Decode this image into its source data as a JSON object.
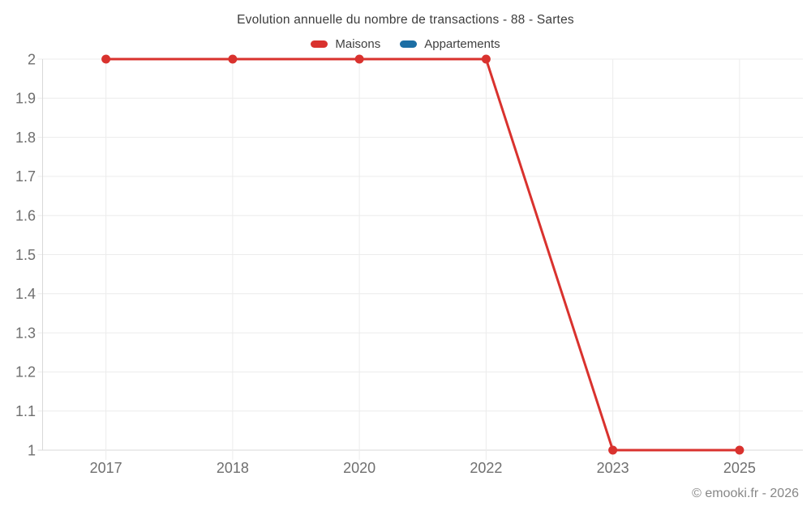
{
  "chart": {
    "title": "Evolution annuelle du nombre de transactions - 88 - Sartes"
  },
  "footer": {
    "copyright": "© emooki.fr - 2026"
  },
  "colors": {
    "grid": "#ececec",
    "axis_line": "#d9d9d9",
    "axis_text": "#6f6f6f",
    "maisons_red": "#d9322e",
    "appartements_blue": "#1c6ea4"
  },
  "chart_data": {
    "type": "line",
    "title": "Evolution annuelle du nombre de transactions - 88 - Sartes",
    "xlabel": "",
    "ylabel": "",
    "categories": [
      "2017",
      "2018",
      "2020",
      "2022",
      "2023",
      "2025"
    ],
    "series": [
      {
        "name": "Maisons",
        "color": "#d9322e",
        "values": [
          2,
          2,
          2,
          2,
          1,
          1
        ]
      },
      {
        "name": "Appartements",
        "color": "#1c6ea4",
        "values": []
      }
    ],
    "ylim": [
      1,
      2
    ],
    "yticks": [
      {
        "value": 1,
        "label": "1"
      },
      {
        "value": 1.1,
        "label": "1.1"
      },
      {
        "value": 1.2,
        "label": "1.2"
      },
      {
        "value": 1.3,
        "label": "1.3"
      },
      {
        "value": 1.4,
        "label": "1.4"
      },
      {
        "value": 1.5,
        "label": "1.5"
      },
      {
        "value": 1.6,
        "label": "1.6"
      },
      {
        "value": 1.7,
        "label": "1.7"
      },
      {
        "value": 1.8,
        "label": "1.8"
      },
      {
        "value": 1.9,
        "label": "1.9"
      },
      {
        "value": 2,
        "label": "2"
      }
    ],
    "grid": true,
    "legend_position": "top"
  }
}
